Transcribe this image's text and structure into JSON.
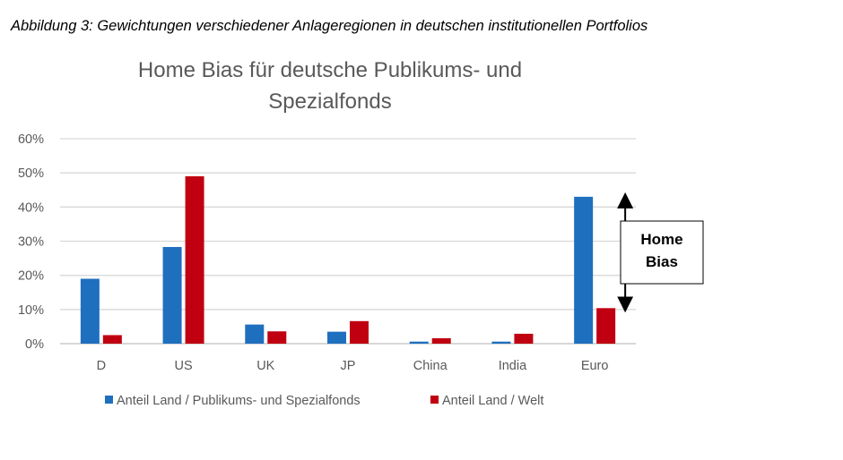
{
  "figure_caption": "Abbildung 3: Gewichtungen verschiedener Anlageregionen in deutschen institutionellen Portfolios",
  "chart_data": {
    "type": "bar",
    "title_lines": [
      "Home Bias für deutsche Publikums- und",
      "Spezialfonds"
    ],
    "categories": [
      "D",
      "US",
      "UK",
      "JP",
      "China",
      "India",
      "Euro"
    ],
    "series": [
      {
        "name": "Anteil Land / Publikums- und Spezialfonds",
        "color": "#1f6fbf",
        "values": [
          19,
          28.3,
          5.6,
          3.5,
          0.6,
          0.6,
          43
        ]
      },
      {
        "name": "Anteil Land / Welt",
        "color": "#c00010",
        "values": [
          2.5,
          49,
          3.6,
          6.6,
          1.6,
          2.9,
          10.4
        ]
      }
    ],
    "ylim": [
      0,
      60
    ],
    "yticks": [
      0,
      10,
      20,
      30,
      40,
      50,
      60
    ],
    "ytick_labels": [
      "0%",
      "10%",
      "20%",
      "30%",
      "40%",
      "50%",
      "60%"
    ],
    "grid": true,
    "legend_position": "bottom",
    "annotation": {
      "lines": [
        "Home",
        "Bias"
      ],
      "category": "Euro",
      "from_value": 43,
      "to_value": 10.4
    }
  }
}
